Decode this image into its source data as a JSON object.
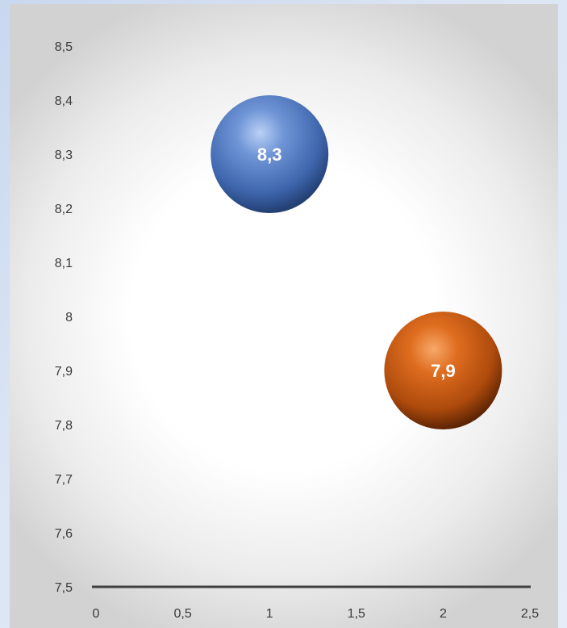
{
  "chart_data": {
    "type": "bubble",
    "title": "",
    "xlabel": "",
    "ylabel": "",
    "xlim": [
      0,
      2.5
    ],
    "ylim": [
      7.5,
      8.5
    ],
    "x_ticks": [
      "0",
      "0,5",
      "1",
      "1,5",
      "2",
      "2,5"
    ],
    "y_ticks": [
      "7,5",
      "7,6",
      "7,7",
      "7,8",
      "7,9",
      "8",
      "8,1",
      "8,2",
      "8,3",
      "8,4",
      "8,5"
    ],
    "grid": false,
    "legend": "none",
    "points": [
      {
        "x": 1,
        "y": 8.3,
        "label": "8,3",
        "color": "#4a77c2"
      },
      {
        "x": 2,
        "y": 7.9,
        "label": "7,9",
        "color": "#d05a10"
      }
    ]
  }
}
